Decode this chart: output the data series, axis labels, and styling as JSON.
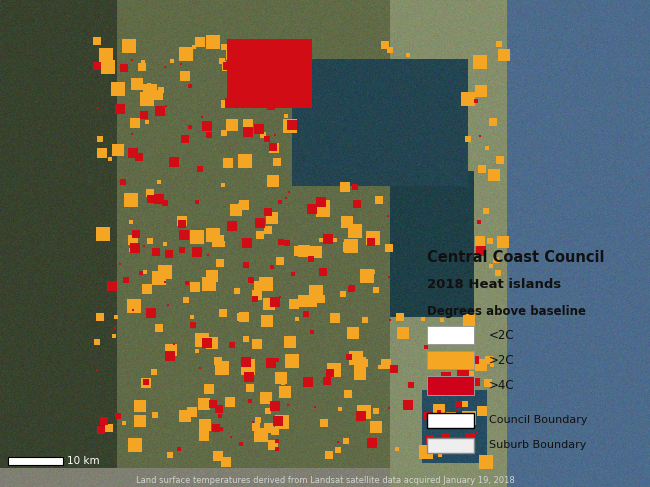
{
  "title1": "Central Coast Council",
  "title2": "2018 Heat islands",
  "legend_title": "Degrees above baseline",
  "legend_items": [
    {
      "label": "<2C",
      "color": "#FFFFFF",
      "edgecolor": "#999999"
    },
    {
      "label": ">2C",
      "color": "#F5A623",
      "edgecolor": "#999999"
    },
    {
      "label": ">4C",
      "color": "#D0021B",
      "edgecolor": "#999999"
    }
  ],
  "boundary_items": [
    {
      "label": "Council Boundary",
      "edgecolor": "#000000",
      "facecolor": "#FFFFFF"
    },
    {
      "label": "Suburb Boundary",
      "edgecolor": "#888888",
      "facecolor": "#EEEEEE"
    }
  ],
  "footer_text": "Land surface temperatures derived from Landsat satellite data acquired January 19, 2018",
  "scalebar_label": "10 km",
  "legend_box_color": "#EFEFED",
  "legend_title1_fontsize": 10.5,
  "legend_title2_fontsize": 9.5,
  "legend_sub_fontsize": 8.5,
  "legend_item_fontsize": 8.5,
  "scalebar_fontsize": 7.5,
  "footer_fontsize": 6.0,
  "background_color": "#3a4a5a"
}
